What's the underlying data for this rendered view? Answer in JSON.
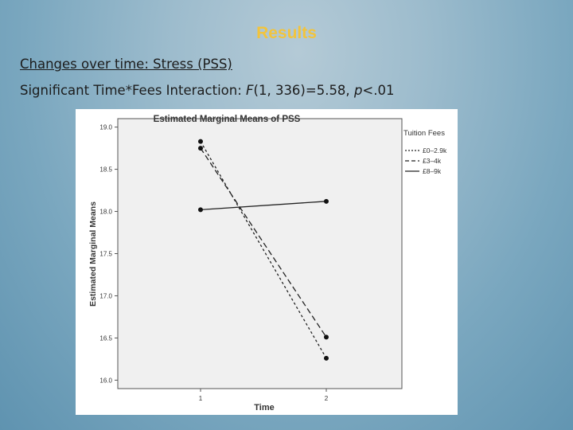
{
  "slide": {
    "title": "Results",
    "line1": "Changes over time: Stress (PSS)",
    "line2_prefix": "Significant Time*Fees Interaction: ",
    "line2_stat": "F",
    "line2_mid": "(1, 336)=5.58, ",
    "line2_p": "p",
    "line2_suffix": "<.01"
  },
  "colors": {
    "title": "#f2c43c",
    "plot_bg": "#f0f0f0"
  },
  "chart_data": {
    "type": "line",
    "title": "Estimated Marginal Means of PSS",
    "xlabel": "Time",
    "ylabel": "Estimated Marginal Means",
    "x": [
      "1",
      "2"
    ],
    "ylim": [
      15.9,
      19.1
    ],
    "yticks": [
      "19.0",
      "18.5",
      "18.0",
      "17.5",
      "17.0",
      "16.5",
      "16.0"
    ],
    "grid": false,
    "legend_title": "Tuition Fees",
    "legend_position": "right",
    "series": [
      {
        "name": "£0–2.9k",
        "dash": "short-dash",
        "values": [
          18.83,
          16.26
        ]
      },
      {
        "name": "£3–4k",
        "dash": "long-dash",
        "values": [
          18.75,
          16.51
        ]
      },
      {
        "name": "£8–9k",
        "dash": "solid",
        "values": [
          18.02,
          18.12
        ]
      }
    ]
  }
}
